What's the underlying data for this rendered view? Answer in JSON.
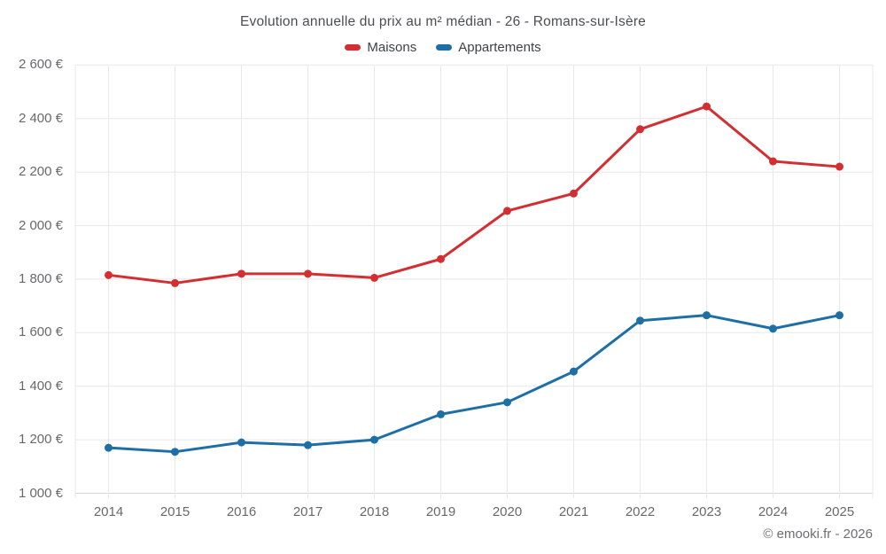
{
  "chart_data": {
    "type": "line",
    "title": "Evolution annuelle du prix au m² médian - 26 - Romans-sur-Isère",
    "categories": [
      "2014",
      "2015",
      "2016",
      "2017",
      "2018",
      "2019",
      "2020",
      "2021",
      "2022",
      "2023",
      "2024",
      "2025"
    ],
    "series": [
      {
        "name": "Maisons",
        "color": "#d32f33",
        "values": [
          1815,
          1785,
          1820,
          1820,
          1805,
          1875,
          2055,
          2120,
          2360,
          2445,
          2240,
          2220
        ]
      },
      {
        "name": "Appartements",
        "color": "#1d6fa5",
        "values": [
          1170,
          1155,
          1190,
          1180,
          1200,
          1295,
          1340,
          1455,
          1645,
          1665,
          1615,
          1665
        ]
      }
    ],
    "xlabel": "",
    "ylabel": "",
    "ylim": [
      1000,
      2600
    ],
    "ytick_step": 200,
    "y_ticks": [
      {
        "value": 2600,
        "label": "2 600 €"
      },
      {
        "value": 2400,
        "label": "2 400 €"
      },
      {
        "value": 2200,
        "label": "2 200 €"
      },
      {
        "value": 2000,
        "label": "2 000 €"
      },
      {
        "value": 1800,
        "label": "1 800 €"
      },
      {
        "value": 1600,
        "label": "1 600 €"
      },
      {
        "value": 1400,
        "label": "1 400 €"
      },
      {
        "value": 1200,
        "label": "1 200 €"
      },
      {
        "value": 1000,
        "label": "1 000 €"
      }
    ],
    "grid": true,
    "legend_position": "top"
  },
  "footer": {
    "watermark": "© emooki.fr - 2026"
  },
  "colors": {
    "grid": "#e8e8e8",
    "axis_line": "#d6d6d6",
    "axis_label": "#66696c",
    "title_text": "#4a4e52",
    "legend_text": "#3e4247",
    "background": "#ffffff"
  }
}
